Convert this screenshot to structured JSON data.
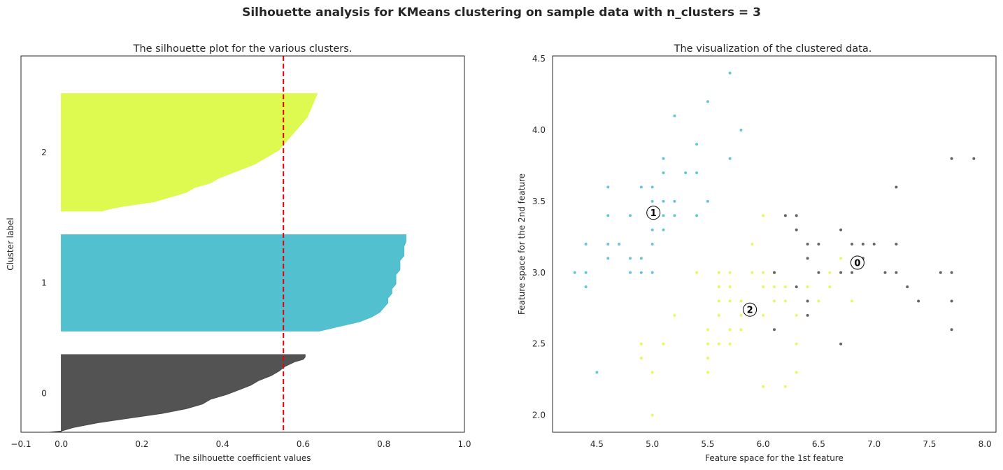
{
  "suptitle": "Silhouette analysis for KMeans clustering on sample data with n_clusters = 3",
  "chart_data": [
    {
      "type": "area",
      "title": "The silhouette plot for the various clusters.",
      "xlabel": "The silhouette coefficient values",
      "ylabel": "Cluster label",
      "xlim": [
        -0.1,
        1.0
      ],
      "ylim": [
        0,
        160
      ],
      "xticks": [
        "−0.1",
        "0.0",
        "0.2",
        "0.4",
        "0.6",
        "0.8",
        "1.0"
      ],
      "xtick_values": [
        -0.1,
        0.0,
        0.2,
        0.4,
        0.6,
        0.8,
        1.0
      ],
      "average_silhouette": 0.551,
      "clusters": [
        {
          "label": "0",
          "color": "#4a4a4a",
          "y_lower": 0,
          "y_upper": 33,
          "profile": [
            [
              0,
              -0.03
            ],
            [
              0.5,
              0.0
            ],
            [
              2,
              0.03
            ],
            [
              4,
              0.09
            ],
            [
              6,
              0.17
            ],
            [
              8,
              0.25
            ],
            [
              10,
              0.31
            ],
            [
              12,
              0.35
            ],
            [
              14,
              0.37
            ],
            [
              16,
              0.41
            ],
            [
              18,
              0.44
            ],
            [
              20,
              0.47
            ],
            [
              22,
              0.49
            ],
            [
              24,
              0.52
            ],
            [
              26,
              0.54
            ],
            [
              28,
              0.555
            ],
            [
              30,
              0.58
            ],
            [
              31,
              0.6
            ],
            [
              32,
              0.605
            ],
            [
              33,
              0.605
            ]
          ]
        },
        {
          "label": "1",
          "color": "#4abdcc",
          "y_lower": 43,
          "y_upper": 84,
          "profile": [
            [
              0,
              0.64
            ],
            [
              2,
              0.69
            ],
            [
              4,
              0.74
            ],
            [
              6,
              0.77
            ],
            [
              8,
              0.79
            ],
            [
              10,
              0.8
            ],
            [
              12,
              0.81
            ],
            [
              14,
              0.81
            ],
            [
              16,
              0.82
            ],
            [
              18,
              0.82
            ],
            [
              20,
              0.83
            ],
            [
              22,
              0.83
            ],
            [
              24,
              0.83
            ],
            [
              26,
              0.84
            ],
            [
              28,
              0.84
            ],
            [
              30,
              0.84
            ],
            [
              32,
              0.85
            ],
            [
              34,
              0.85
            ],
            [
              36,
              0.85
            ],
            [
              38,
              0.855
            ],
            [
              40,
              0.855
            ],
            [
              41,
              0.855
            ]
          ]
        },
        {
          "label": "2",
          "color": "#dcfa48",
          "y_lower": 94,
          "y_upper": 144,
          "profile": [
            [
              0,
              0.1
            ],
            [
              1,
              0.12
            ],
            [
              2,
              0.15
            ],
            [
              4,
              0.23
            ],
            [
              6,
              0.27
            ],
            [
              8,
              0.31
            ],
            [
              10,
              0.33
            ],
            [
              12,
              0.37
            ],
            [
              14,
              0.39
            ],
            [
              16,
              0.42
            ],
            [
              18,
              0.45
            ],
            [
              20,
              0.48
            ],
            [
              22,
              0.5
            ],
            [
              24,
              0.52
            ],
            [
              26,
              0.54
            ],
            [
              28,
              0.55
            ],
            [
              30,
              0.56
            ],
            [
              32,
              0.57
            ],
            [
              34,
              0.58
            ],
            [
              36,
              0.59
            ],
            [
              38,
              0.6
            ],
            [
              40,
              0.61
            ],
            [
              42,
              0.615
            ],
            [
              44,
              0.62
            ],
            [
              46,
              0.625
            ],
            [
              48,
              0.63
            ],
            [
              50,
              0.635
            ]
          ]
        }
      ]
    },
    {
      "type": "scatter",
      "title": "The visualization of the clustered data.",
      "xlabel": "Feature space for the 1st feature",
      "ylabel": "Feature space for the 2nd feature",
      "xlim": [
        4.1,
        8.1
      ],
      "ylim": [
        1.88,
        4.52
      ],
      "xticks": [
        4.5,
        5.0,
        5.5,
        6.0,
        6.5,
        7.0,
        7.5,
        8.0
      ],
      "xtick_labels": [
        "4.5",
        "5.0",
        "5.5",
        "6.0",
        "6.5",
        "7.0",
        "7.5",
        "8.0"
      ],
      "yticks": [
        2.0,
        2.5,
        3.0,
        3.5,
        4.0,
        4.5
      ],
      "ytick_labels": [
        "2.0",
        "2.5",
        "3.0",
        "3.5",
        "4.0",
        "4.5"
      ],
      "series": [
        {
          "cluster": "1",
          "color": "#4abdcc",
          "points": [
            [
              4.3,
              3.0
            ],
            [
              4.4,
              3.0
            ],
            [
              4.4,
              2.9
            ],
            [
              4.4,
              3.2
            ],
            [
              4.5,
              2.3
            ],
            [
              4.6,
              3.1
            ],
            [
              4.6,
              3.2
            ],
            [
              4.6,
              3.4
            ],
            [
              4.6,
              3.6
            ],
            [
              4.7,
              3.2
            ],
            [
              4.8,
              3.0
            ],
            [
              4.8,
              3.1
            ],
            [
              4.8,
              3.4
            ],
            [
              4.9,
              3.0
            ],
            [
              4.9,
              3.1
            ],
            [
              4.9,
              3.6
            ],
            [
              5.0,
              3.0
            ],
            [
              5.0,
              3.2
            ],
            [
              5.0,
              3.3
            ],
            [
              5.0,
              3.4
            ],
            [
              5.0,
              3.5
            ],
            [
              5.0,
              3.6
            ],
            [
              5.1,
              3.3
            ],
            [
              5.1,
              3.4
            ],
            [
              5.1,
              3.5
            ],
            [
              5.1,
              3.7
            ],
            [
              5.1,
              3.8
            ],
            [
              5.2,
              3.4
            ],
            [
              5.2,
              3.5
            ],
            [
              5.2,
              4.1
            ],
            [
              5.3,
              3.7
            ],
            [
              5.4,
              3.4
            ],
            [
              5.4,
              3.7
            ],
            [
              5.4,
              3.9
            ],
            [
              5.5,
              3.5
            ],
            [
              5.5,
              4.2
            ],
            [
              5.7,
              3.8
            ],
            [
              5.7,
              4.4
            ],
            [
              5.8,
              4.0
            ]
          ]
        },
        {
          "cluster": "2",
          "color": "#dcfa48",
          "points": [
            [
              4.9,
              2.4
            ],
            [
              4.9,
              2.5
            ],
            [
              5.0,
              2.0
            ],
            [
              5.0,
              2.3
            ],
            [
              5.1,
              2.5
            ],
            [
              5.2,
              2.7
            ],
            [
              5.4,
              3.0
            ],
            [
              5.5,
              2.3
            ],
            [
              5.5,
              2.4
            ],
            [
              5.5,
              2.5
            ],
            [
              5.5,
              2.6
            ],
            [
              5.6,
              2.5
            ],
            [
              5.6,
              2.7
            ],
            [
              5.6,
              2.8
            ],
            [
              5.6,
              2.9
            ],
            [
              5.6,
              3.0
            ],
            [
              5.7,
              2.5
            ],
            [
              5.7,
              2.6
            ],
            [
              5.7,
              2.8
            ],
            [
              5.7,
              2.9
            ],
            [
              5.7,
              3.0
            ],
            [
              5.8,
              2.6
            ],
            [
              5.8,
              2.7
            ],
            [
              5.8,
              2.8
            ],
            [
              5.9,
              3.0
            ],
            [
              5.9,
              3.2
            ],
            [
              6.0,
              2.2
            ],
            [
              6.0,
              2.7
            ],
            [
              6.0,
              2.9
            ],
            [
              6.0,
              3.0
            ],
            [
              6.0,
              3.4
            ],
            [
              6.1,
              2.8
            ],
            [
              6.1,
              2.9
            ],
            [
              6.1,
              3.0
            ],
            [
              6.2,
              2.2
            ],
            [
              6.2,
              2.8
            ],
            [
              6.2,
              2.9
            ],
            [
              6.3,
              2.3
            ],
            [
              6.3,
              2.5
            ],
            [
              6.3,
              2.7
            ],
            [
              6.4,
              2.9
            ],
            [
              6.5,
              2.8
            ],
            [
              6.6,
              2.9
            ],
            [
              6.6,
              3.0
            ],
            [
              6.7,
              3.1
            ],
            [
              6.8,
              2.8
            ]
          ]
        },
        {
          "cluster": "0",
          "color": "#4a4a4a",
          "points": [
            [
              6.1,
              2.6
            ],
            [
              6.1,
              3.0
            ],
            [
              6.2,
              3.4
            ],
            [
              6.3,
              2.9
            ],
            [
              6.3,
              3.3
            ],
            [
              6.3,
              3.4
            ],
            [
              6.4,
              2.7
            ],
            [
              6.4,
              2.8
            ],
            [
              6.4,
              3.1
            ],
            [
              6.4,
              3.2
            ],
            [
              6.5,
              3.0
            ],
            [
              6.5,
              3.2
            ],
            [
              6.7,
              2.5
            ],
            [
              6.7,
              3.0
            ],
            [
              6.7,
              3.3
            ],
            [
              6.8,
              3.0
            ],
            [
              6.8,
              3.2
            ],
            [
              6.9,
              3.1
            ],
            [
              6.9,
              3.2
            ],
            [
              7.0,
              3.2
            ],
            [
              7.1,
              3.0
            ],
            [
              7.2,
              3.0
            ],
            [
              7.2,
              3.2
            ],
            [
              7.2,
              3.6
            ],
            [
              7.3,
              2.9
            ],
            [
              7.4,
              2.8
            ],
            [
              7.6,
              3.0
            ],
            [
              7.7,
              2.6
            ],
            [
              7.7,
              2.8
            ],
            [
              7.7,
              3.0
            ],
            [
              7.7,
              3.8
            ],
            [
              7.9,
              3.8
            ]
          ]
        }
      ],
      "centers": [
        {
          "label": "0",
          "x": 6.85,
          "y": 3.07
        },
        {
          "label": "1",
          "x": 5.01,
          "y": 3.42
        },
        {
          "label": "2",
          "x": 5.88,
          "y": 2.74
        }
      ]
    }
  ]
}
